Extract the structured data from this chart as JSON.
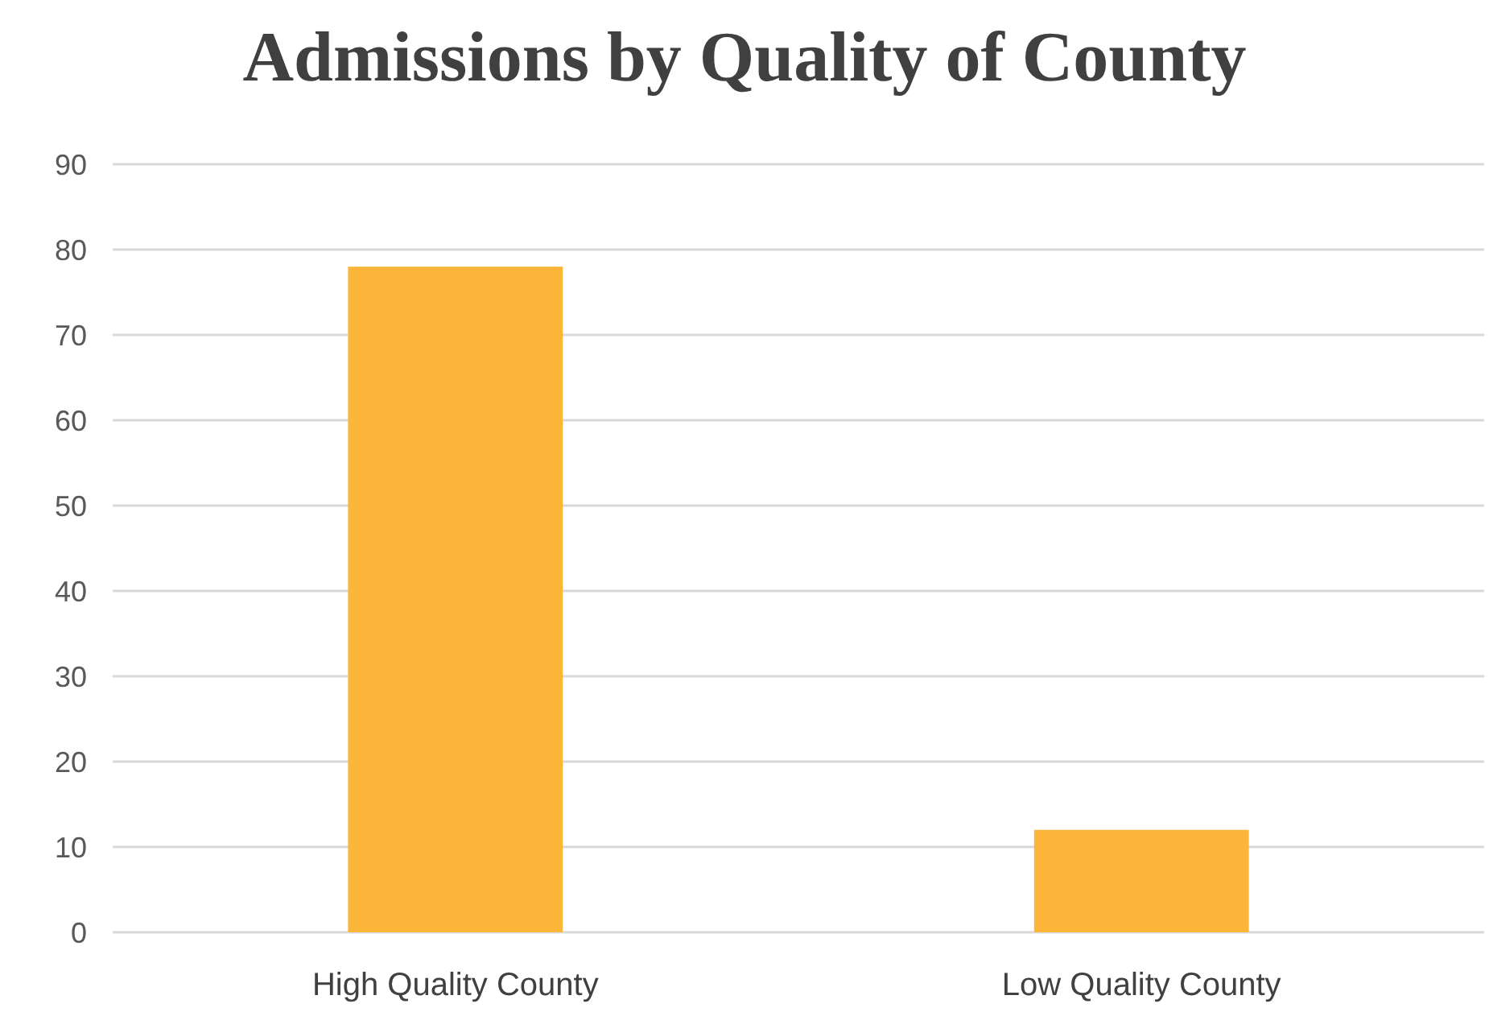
{
  "chart_data": {
    "type": "bar",
    "title": "Admissions by Quality of County",
    "categories": [
      "High Quality County",
      "Low Quality County"
    ],
    "values": [
      78,
      12
    ],
    "color": "#fbb63a",
    "ylim": [
      0,
      90
    ],
    "yticks": [
      0,
      10,
      20,
      30,
      40,
      50,
      60,
      70,
      80,
      90
    ],
    "grid": "y"
  }
}
